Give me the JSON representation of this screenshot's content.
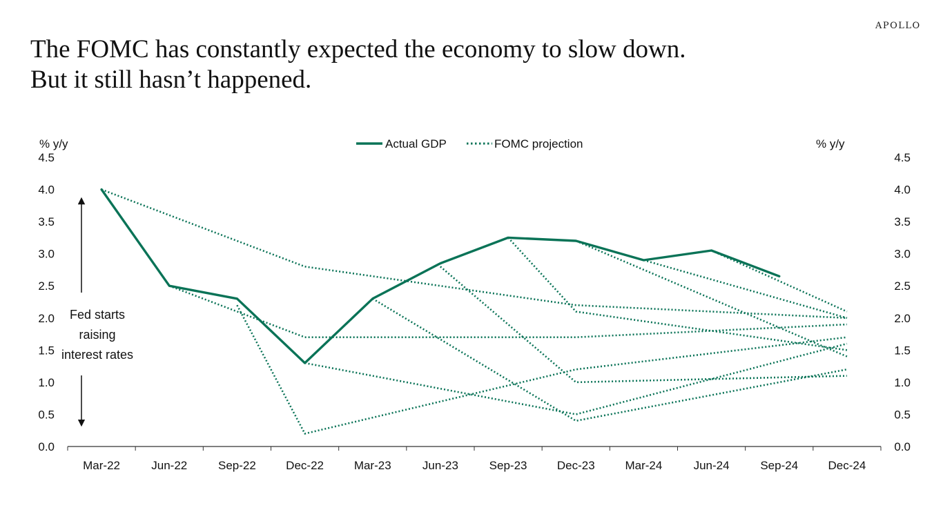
{
  "brand": "APOLLO",
  "title_line1": "The FOMC has constantly expected the economy to slow down.",
  "title_line2": "But it still hasn’t happened.",
  "chart_data": {
    "type": "line",
    "x": [
      "Mar-22",
      "Jun-22",
      "Sep-22",
      "Dec-22",
      "Mar-23",
      "Jun-23",
      "Sep-23",
      "Dec-23",
      "Mar-24",
      "Jun-24",
      "Sep-24",
      "Dec-24"
    ],
    "ylabel_left": "% y/y",
    "ylabel_right": "% y/y",
    "ylim": [
      0,
      4.5
    ],
    "yticks": [
      "0.0",
      "0.5",
      "1.0",
      "1.5",
      "2.0",
      "2.5",
      "3.0",
      "3.5",
      "4.0",
      "4.5"
    ],
    "legend_position": "top-center",
    "color": "#0a7357",
    "series": [
      {
        "name": "Actual GDP",
        "style": "solid",
        "points": [
          [
            0,
            4.0
          ],
          [
            1,
            2.5
          ],
          [
            2,
            2.3
          ],
          [
            3,
            1.3
          ],
          [
            4,
            2.3
          ],
          [
            5,
            2.85
          ],
          [
            6,
            3.25
          ],
          [
            7,
            3.2
          ],
          [
            8,
            2.9
          ],
          [
            9,
            3.05
          ],
          [
            10,
            2.65
          ]
        ]
      },
      {
        "name": "FOMC projection",
        "style": "dotted",
        "projections": [
          [
            [
              0,
              4.0
            ],
            [
              3,
              2.8
            ],
            [
              7,
              2.2
            ],
            [
              11,
              2.0
            ]
          ],
          [
            [
              1,
              2.5
            ],
            [
              3,
              1.7
            ],
            [
              7,
              1.7
            ],
            [
              11,
              1.9
            ]
          ],
          [
            [
              2,
              2.2
            ],
            [
              3,
              0.2
            ],
            [
              7,
              1.2
            ],
            [
              11,
              1.7
            ]
          ],
          [
            [
              3,
              1.3
            ],
            [
              7,
              0.5
            ],
            [
              11,
              1.6
            ]
          ],
          [
            [
              4,
              2.3
            ],
            [
              7,
              0.4
            ],
            [
              11,
              1.2
            ]
          ],
          [
            [
              5,
              2.8
            ],
            [
              7,
              1.0
            ],
            [
              11,
              1.1
            ]
          ],
          [
            [
              6,
              3.25
            ],
            [
              7,
              2.1
            ],
            [
              11,
              1.5
            ]
          ],
          [
            [
              7,
              3.2
            ],
            [
              11,
              1.4
            ]
          ],
          [
            [
              8,
              2.9
            ],
            [
              11,
              2.0
            ]
          ],
          [
            [
              9,
              3.05
            ],
            [
              11,
              2.1
            ]
          ]
        ]
      }
    ],
    "annotation": {
      "lines": [
        "Fed starts",
        "raising",
        "interest rates"
      ]
    }
  }
}
